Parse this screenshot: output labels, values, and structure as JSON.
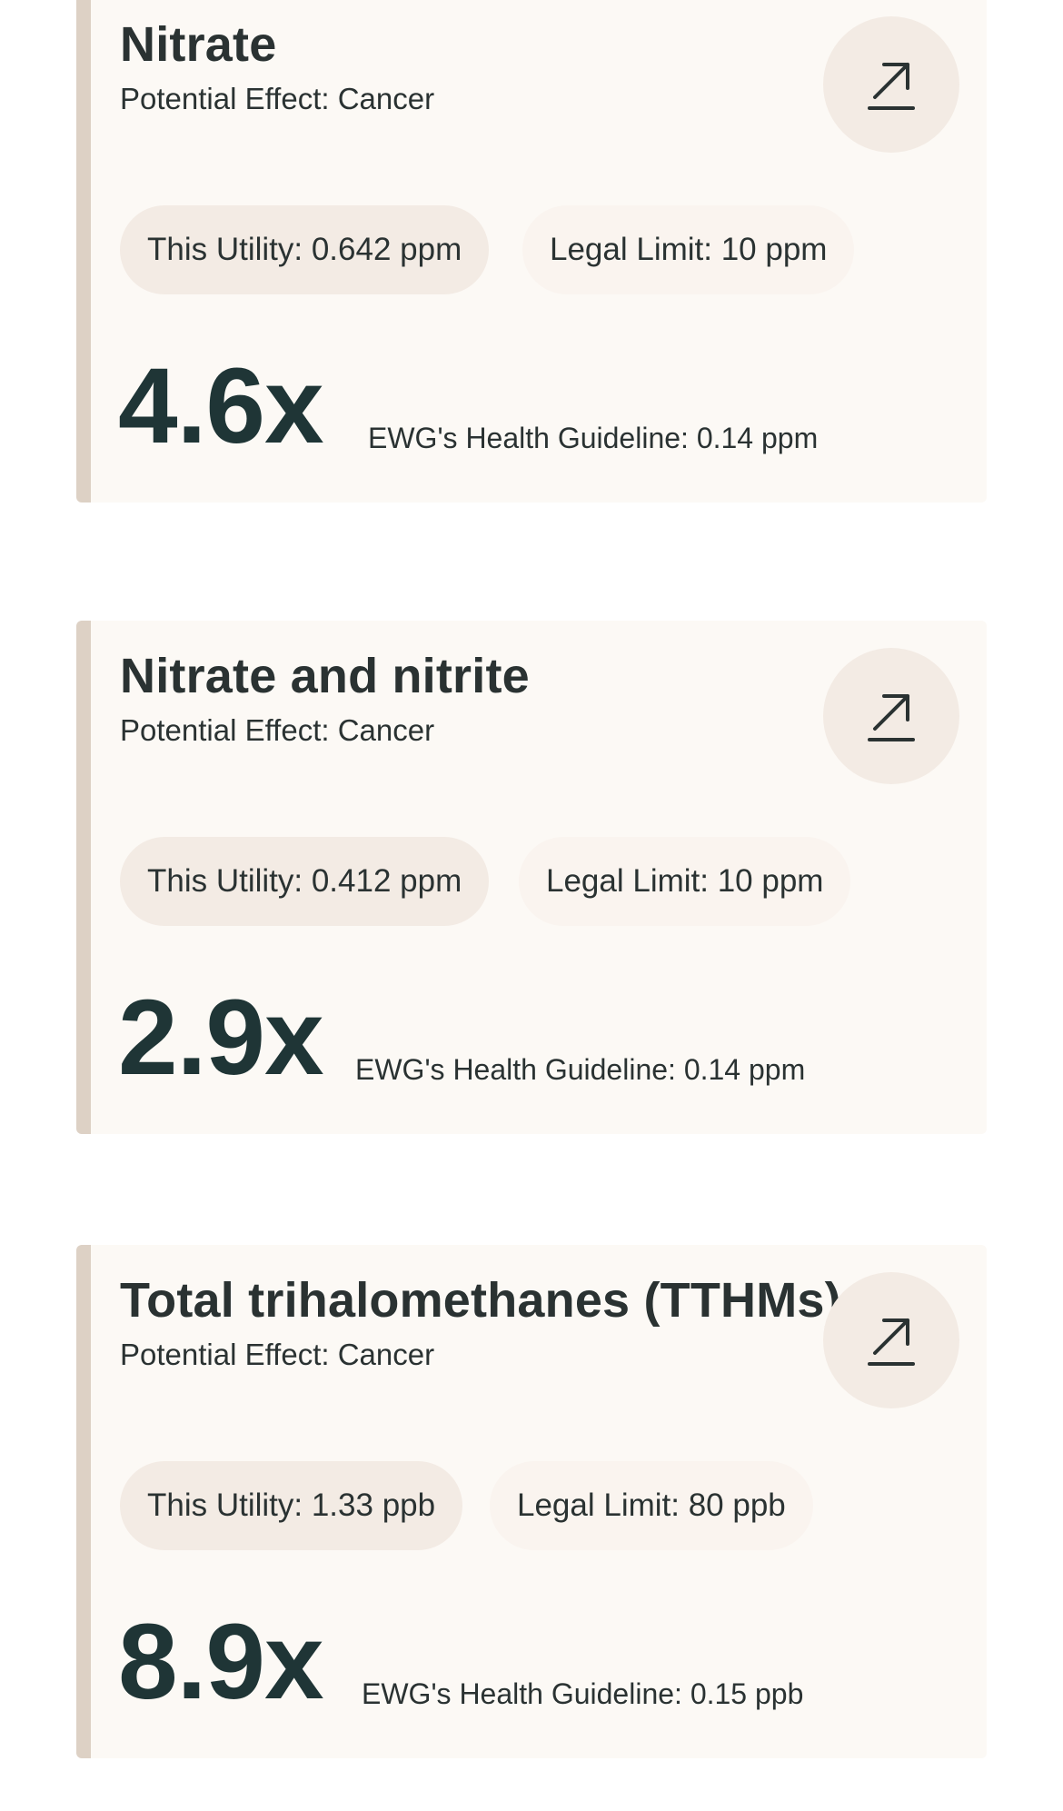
{
  "contaminants": [
    {
      "name": "Nitrate",
      "effect": "Potential Effect: Cancer",
      "this_utility": "This Utility: 0.642 ppm",
      "legal_limit": "Legal Limit: 10 ppm",
      "multiplier": "4.6x",
      "guideline": "EWG's Health Guideline: 0.14 ppm",
      "icon": "arrow-up-right-icon"
    },
    {
      "name": "Nitrate and nitrite",
      "effect": "Potential Effect: Cancer",
      "this_utility": "This Utility: 0.412 ppm",
      "legal_limit": "Legal Limit: 10 ppm",
      "multiplier": "2.9x",
      "guideline": "EWG's Health Guideline: 0.14 ppm",
      "icon": "arrow-up-right-icon"
    },
    {
      "name": "Total trihalomethanes (TTHMs)",
      "effect": "Potential Effect: Cancer",
      "this_utility": "This Utility: 1.33 ppb",
      "legal_limit": "Legal Limit: 80 ppb",
      "multiplier": "8.9x",
      "guideline": "EWG's Health Guideline: 0.15 ppb",
      "icon": "arrow-up-right-icon"
    }
  ],
  "colors": {
    "card_bg": "#fcf9f5",
    "card_border": "#ddd1c5",
    "pill_utility": "#f3ebe4",
    "pill_legal": "#faf4ef",
    "multiplier": "#1f3536"
  }
}
